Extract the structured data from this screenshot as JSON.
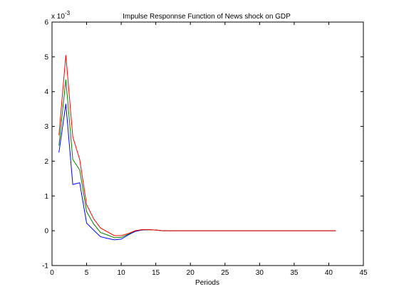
{
  "chart_data": {
    "type": "line",
    "title": "Impulse Responnse Function of News shock on GDP",
    "xlabel": "Periods",
    "ylabel": "",
    "y_multiplier_label": {
      "base": "x 10",
      "exponent": "-3"
    },
    "xlim": [
      0,
      45
    ],
    "ylim": [
      -1,
      6
    ],
    "x_ticks": [
      0,
      5,
      10,
      15,
      20,
      25,
      30,
      35,
      40,
      45
    ],
    "y_ticks": [
      -1,
      0,
      1,
      2,
      3,
      4,
      5,
      6
    ],
    "grid": false,
    "legend": "none",
    "x": [
      1,
      2,
      3,
      4,
      5,
      6,
      7,
      8,
      9,
      10,
      11,
      12,
      13,
      14,
      15,
      16,
      17,
      18,
      19,
      20,
      21,
      22,
      23,
      24,
      25,
      26,
      27,
      28,
      29,
      30,
      31,
      32,
      33,
      34,
      35,
      36,
      37,
      38,
      39,
      40,
      41
    ],
    "series": [
      {
        "color": "#0000ff",
        "values": [
          2.25,
          3.65,
          1.33,
          1.38,
          0.22,
          0.02,
          -0.17,
          -0.22,
          -0.26,
          -0.24,
          -0.12,
          -0.02,
          0.02,
          0.03,
          0.02,
          0.0,
          0.0,
          0.0,
          0.0,
          0.0,
          0.0,
          0.0,
          0.0,
          0.0,
          0.0,
          0.0,
          0.0,
          0.0,
          0.0,
          0.0,
          0.0,
          0.0,
          0.0,
          0.0,
          0.0,
          0.0,
          0.0,
          0.0,
          0.0,
          0.0,
          0.0
        ]
      },
      {
        "color": "#008000",
        "values": [
          2.45,
          4.35,
          2.05,
          1.75,
          0.55,
          0.2,
          -0.05,
          -0.12,
          -0.2,
          -0.19,
          -0.1,
          0.0,
          0.03,
          0.03,
          0.02,
          0.0,
          0.0,
          0.0,
          0.0,
          0.0,
          0.0,
          0.0,
          0.0,
          0.0,
          0.0,
          0.0,
          0.0,
          0.0,
          0.0,
          0.0,
          0.0,
          0.0,
          0.0,
          0.0,
          0.0,
          0.0,
          0.0,
          0.0,
          0.0,
          0.0,
          0.0
        ]
      },
      {
        "color": "#ff0000",
        "values": [
          2.75,
          5.05,
          2.7,
          2.05,
          0.75,
          0.35,
          0.08,
          -0.03,
          -0.14,
          -0.14,
          -0.08,
          0.0,
          0.03,
          0.03,
          0.02,
          0.0,
          0.0,
          0.0,
          0.0,
          0.0,
          0.0,
          0.0,
          0.0,
          0.0,
          0.0,
          0.0,
          0.0,
          0.0,
          0.0,
          0.0,
          0.0,
          0.0,
          0.0,
          0.0,
          0.0,
          0.0,
          0.0,
          0.0,
          0.0,
          0.0,
          0.0
        ]
      }
    ]
  }
}
